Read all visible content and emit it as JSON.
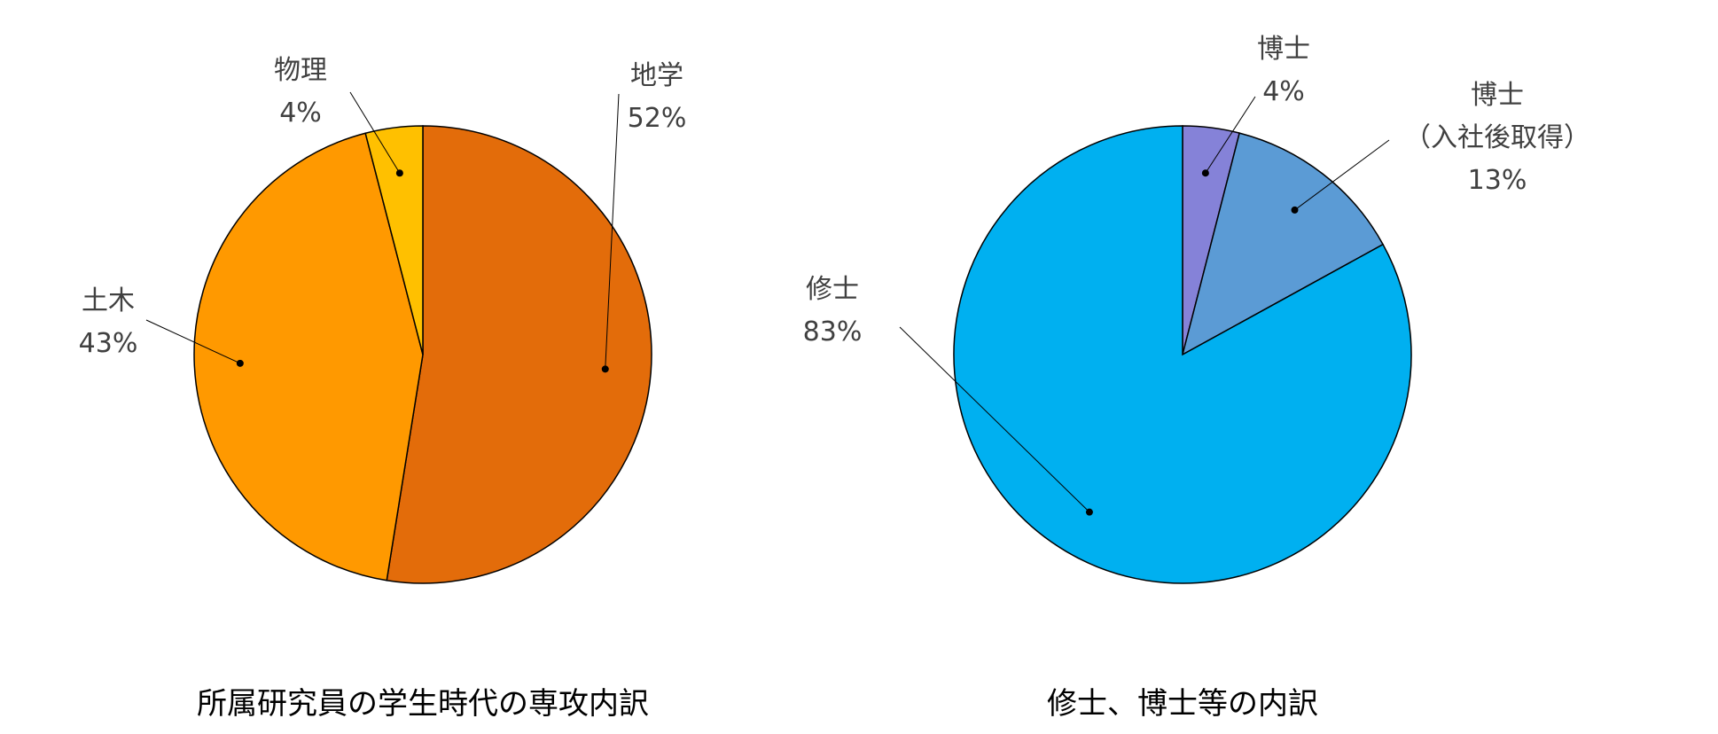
{
  "chart_data": [
    {
      "type": "pie",
      "title": "所属研究員の学生時代の専攻内訳",
      "categories": [
        "地学",
        "土木",
        "物理"
      ],
      "values": [
        52,
        43,
        4
      ],
      "value_labels": [
        "52%",
        "43%",
        "4%"
      ],
      "colors": [
        "#e36c0a",
        "#ff9900",
        "#ffc000"
      ]
    },
    {
      "type": "pie",
      "title": "修士、博士等の内訳",
      "categories": [
        "博士",
        "博士\n（入社後取得）",
        "修士"
      ],
      "values": [
        4,
        13,
        83
      ],
      "value_labels": [
        "4%",
        "13%",
        "83%"
      ],
      "colors": [
        "#8582d8",
        "#5b9bd5",
        "#00b0f0"
      ]
    }
  ]
}
